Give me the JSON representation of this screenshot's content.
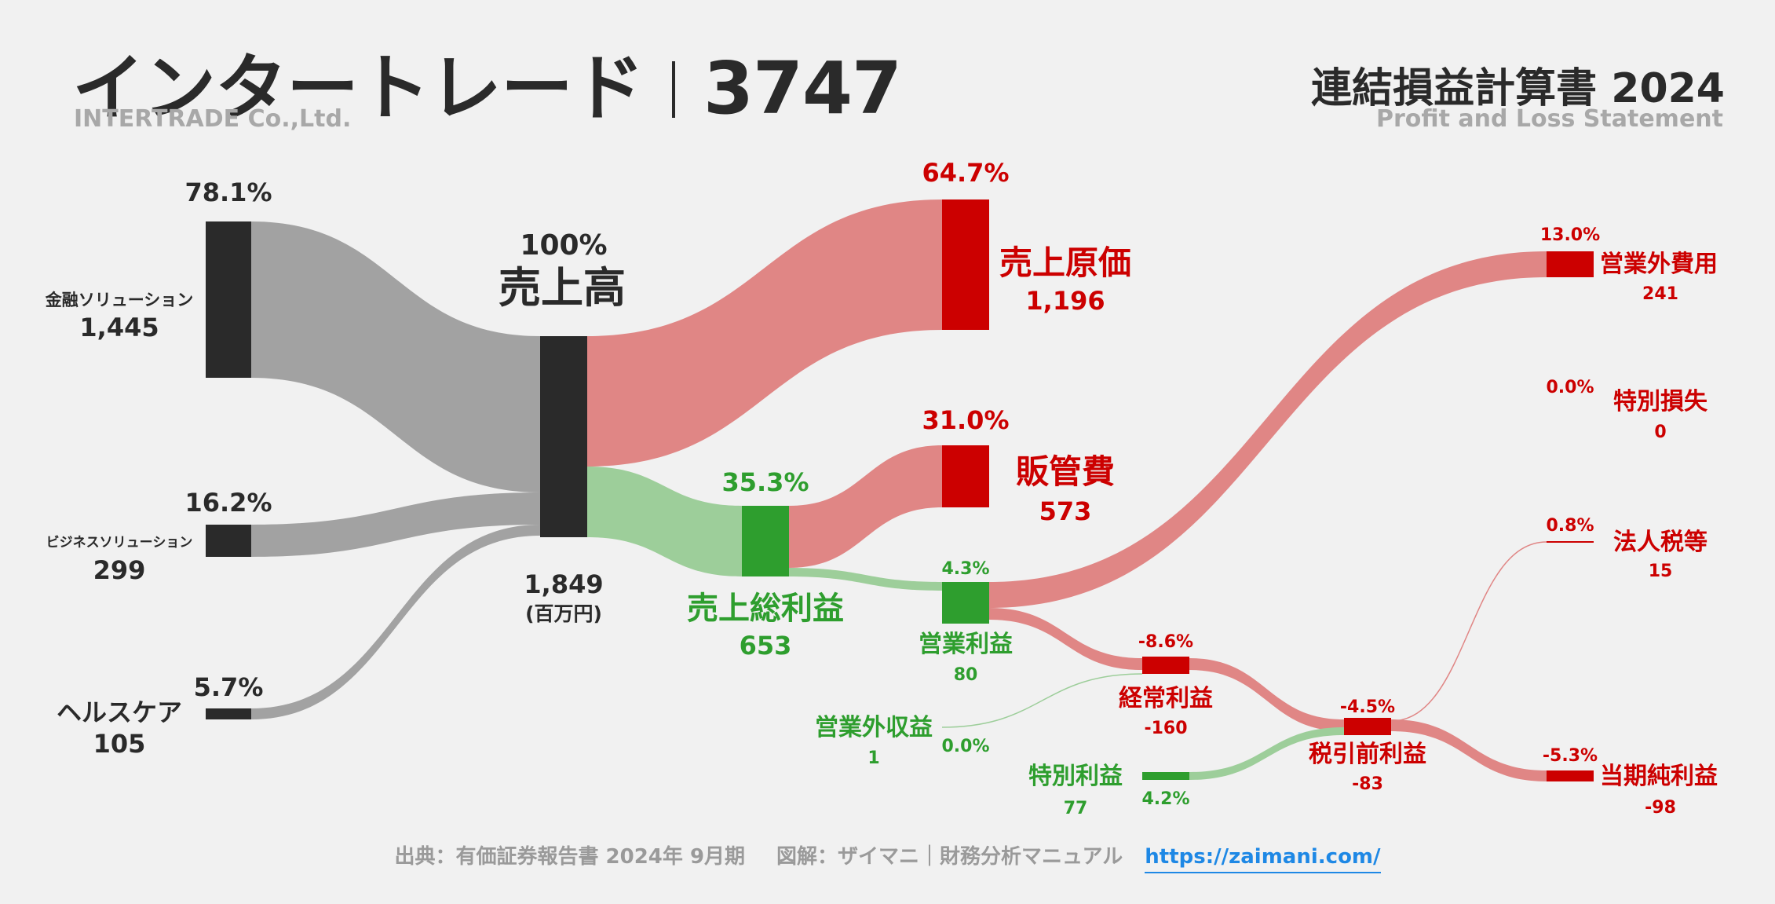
{
  "header": {
    "company": "インタートレード",
    "code": "3747",
    "company_en": "INTERTRADE Co.,Ltd.",
    "statement": "連結損益計算書 2024",
    "statement_en": "Profit and Loss Statement"
  },
  "footer": {
    "source": "出典：有価証券報告書 2024年 9月期",
    "credit": "図解：ザイマニ｜財務分析マニュアル",
    "url": "https://zaimani.com/"
  },
  "colors": {
    "dark": "#2a2a2a",
    "gray_flow": "#a2a2a2",
    "red": "#cc0000",
    "red_flow": "#e08685",
    "green": "#2e9e2e",
    "green_flow": "#9dce9a",
    "background": "#f1f1f1"
  },
  "chart_data": {
    "type": "sankey",
    "unit": "(百万円)",
    "segments": [
      {
        "name": "金融ソリューション",
        "value": 1445,
        "pct": "78.1%"
      },
      {
        "name": "ビジネスソリューション",
        "value": 299,
        "pct": "16.2%"
      },
      {
        "name": "ヘルスケア",
        "value": 105,
        "pct": "5.7%"
      }
    ],
    "revenue": {
      "name": "売上高",
      "value": "1,849",
      "pct": "100%"
    },
    "cogs": {
      "name": "売上原価",
      "value": "1,196",
      "pct": "64.7%"
    },
    "gross_profit": {
      "name": "売上総利益",
      "value": "653",
      "pct": "35.3%"
    },
    "sga": {
      "name": "販管費",
      "value": "573",
      "pct": "31.0%"
    },
    "operating_income": {
      "name": "営業利益",
      "value": "80",
      "pct": "4.3%"
    },
    "non_op_income": {
      "name": "営業外収益",
      "value": "1",
      "pct": "0.0%"
    },
    "non_op_expense": {
      "name": "営業外費用",
      "value": "241",
      "pct": "13.0%"
    },
    "ordinary_income": {
      "name": "経常利益",
      "value": "-160",
      "pct": "-8.6%"
    },
    "extraordinary_gain": {
      "name": "特別利益",
      "value": "77",
      "pct": "4.2%"
    },
    "extraordinary_loss": {
      "name": "特別損失",
      "value": "0",
      "pct": "0.0%"
    },
    "pretax_income": {
      "name": "税引前利益",
      "value": "-83",
      "pct": "-4.5%"
    },
    "income_tax": {
      "name": "法人税等",
      "value": "15",
      "pct": "0.8%"
    },
    "net_income": {
      "name": "当期純利益",
      "value": "-98",
      "pct": "-5.3%"
    }
  }
}
